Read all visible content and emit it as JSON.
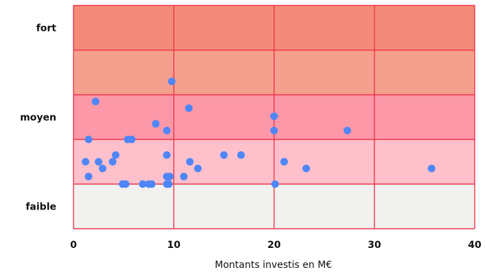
{
  "chart_data": {
    "type": "scatter",
    "xlabel": "Montants investis en M€",
    "ylabel": "",
    "xlim": [
      0,
      40
    ],
    "xticks": [
      0,
      10,
      20,
      30,
      40
    ],
    "x_tick_labels": [
      "0",
      "10",
      "20",
      "30",
      "40"
    ],
    "ylim": [
      0,
      5
    ],
    "y_category_labels": [
      {
        "label": "fort",
        "y": 4.5
      },
      {
        "label": "moyen",
        "y": 2.5
      },
      {
        "label": "faible",
        "y": 0.5
      }
    ],
    "bands": [
      {
        "from": 4,
        "to": 5,
        "color": "#f48b7a"
      },
      {
        "from": 3,
        "to": 4,
        "color": "#f5a08e"
      },
      {
        "from": 2,
        "to": 3,
        "color": "#fd98a8"
      },
      {
        "from": 1,
        "to": 2,
        "color": "#fec1cb"
      },
      {
        "from": 0,
        "to": 1,
        "color": "#f1f1ef"
      }
    ],
    "grid_color": "#f0344a",
    "point_color": "#4f86f7",
    "points": [
      {
        "x": 9.8,
        "y": 3.3
      },
      {
        "x": 2.2,
        "y": 2.85
      },
      {
        "x": 11.5,
        "y": 2.7
      },
      {
        "x": 20.0,
        "y": 2.52
      },
      {
        "x": 8.2,
        "y": 2.35
      },
      {
        "x": 9.3,
        "y": 2.2
      },
      {
        "x": 20.0,
        "y": 2.2
      },
      {
        "x": 27.3,
        "y": 2.2
      },
      {
        "x": 1.5,
        "y": 2.0
      },
      {
        "x": 5.4,
        "y": 2.0
      },
      {
        "x": 5.8,
        "y": 2.0
      },
      {
        "x": 4.2,
        "y": 1.65
      },
      {
        "x": 9.3,
        "y": 1.65
      },
      {
        "x": 15.0,
        "y": 1.65
      },
      {
        "x": 16.7,
        "y": 1.65
      },
      {
        "x": 1.2,
        "y": 1.5
      },
      {
        "x": 2.5,
        "y": 1.5
      },
      {
        "x": 3.9,
        "y": 1.5
      },
      {
        "x": 11.6,
        "y": 1.5
      },
      {
        "x": 21.0,
        "y": 1.5
      },
      {
        "x": 2.9,
        "y": 1.35
      },
      {
        "x": 12.4,
        "y": 1.35
      },
      {
        "x": 23.2,
        "y": 1.35
      },
      {
        "x": 35.7,
        "y": 1.35
      },
      {
        "x": 1.5,
        "y": 1.17
      },
      {
        "x": 9.3,
        "y": 1.17
      },
      {
        "x": 9.6,
        "y": 1.17
      },
      {
        "x": 11.0,
        "y": 1.17
      },
      {
        "x": 4.9,
        "y": 1.0
      },
      {
        "x": 5.2,
        "y": 1.0
      },
      {
        "x": 6.9,
        "y": 1.0
      },
      {
        "x": 7.5,
        "y": 1.0
      },
      {
        "x": 7.8,
        "y": 1.0
      },
      {
        "x": 9.3,
        "y": 1.0
      },
      {
        "x": 9.5,
        "y": 1.0
      },
      {
        "x": 20.1,
        "y": 1.0
      }
    ]
  }
}
